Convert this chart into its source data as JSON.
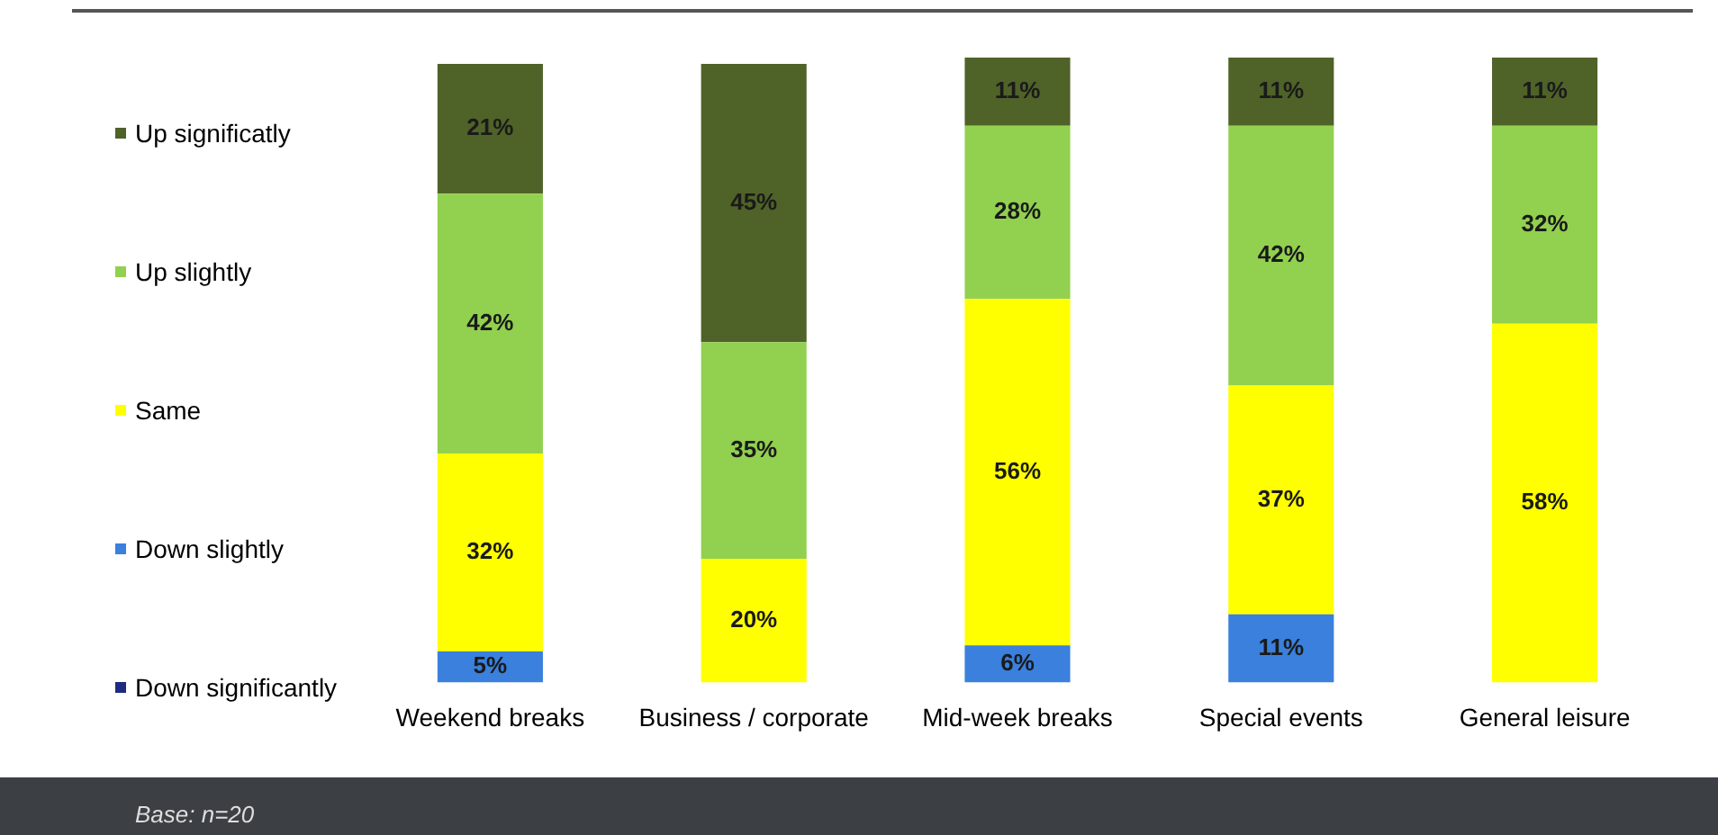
{
  "chart_data": {
    "type": "bar",
    "stacked": true,
    "categories": [
      "Weekend breaks",
      "Business / corporate",
      "Mid-week breaks",
      "Special events",
      "General leisure"
    ],
    "series": [
      {
        "name": "Down significantly",
        "color": "#1f2a80",
        "values": [
          null,
          null,
          null,
          null,
          null
        ],
        "value_labels": [
          null,
          null,
          null,
          null,
          null
        ]
      },
      {
        "name": "Down slightly",
        "color": "#3a80dc",
        "values": [
          5,
          null,
          6,
          11,
          null
        ],
        "value_labels": [
          "5%",
          null,
          "6%",
          "11%",
          null
        ]
      },
      {
        "name": "Same",
        "color": "#ffff00",
        "values": [
          32,
          20,
          56,
          37,
          58
        ],
        "value_labels": [
          "32%",
          "20%",
          "56%",
          "37%",
          "58%"
        ]
      },
      {
        "name": "Up slightly",
        "color": "#92d050",
        "values": [
          42,
          35,
          28,
          42,
          32
        ],
        "value_labels": [
          "42%",
          "35%",
          "28%",
          "42%",
          "32%"
        ]
      },
      {
        "name": "Up significatly",
        "color": "#4f6228",
        "values": [
          21,
          45,
          11,
          11,
          11
        ],
        "value_labels": [
          "21%",
          "45%",
          "11%",
          "11%",
          "11%"
        ]
      }
    ],
    "ylim": [
      0,
      101
    ],
    "tick_labels": "x",
    "grid": false,
    "legend": "left",
    "annotations": [
      "Base: n=20"
    ]
  }
}
